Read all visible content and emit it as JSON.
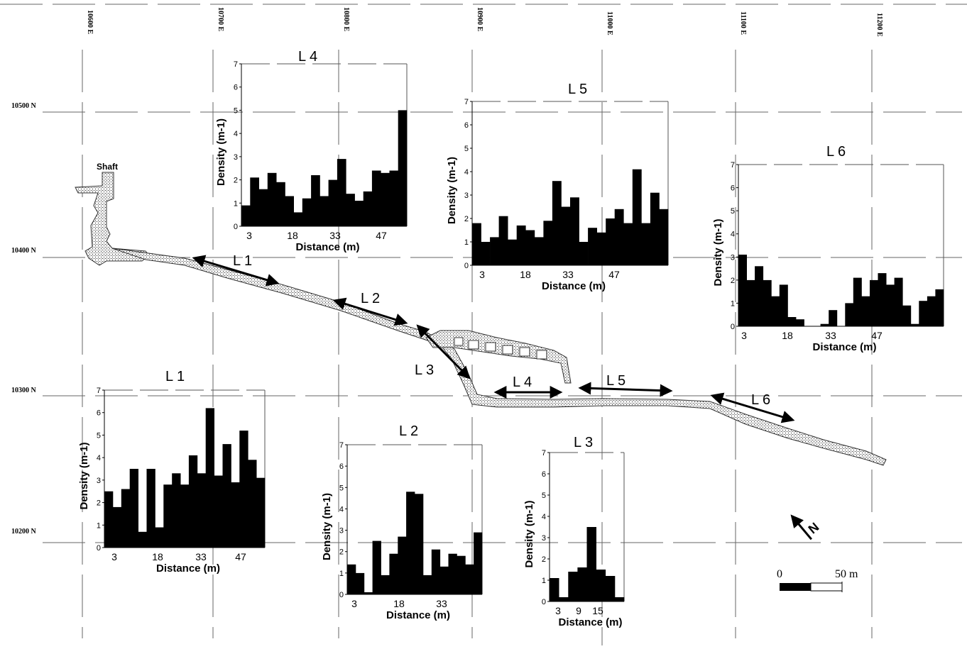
{
  "map": {
    "easting_labels": [
      "10600 E",
      "10700 E",
      "10800 E",
      "10900 E",
      "11000 E",
      "11100 E",
      "11200 E"
    ],
    "northing_labels": [
      "10500 N",
      "10400 N",
      "10300 N",
      "10200 N"
    ],
    "shaft_label": "Shaft",
    "section_labels": [
      "L 1",
      "L 2",
      "L 3",
      "L 4",
      "L 5",
      "L 6"
    ],
    "scale_bar": {
      "start_label": "0",
      "end_label": "50 m"
    },
    "north_arrow": "N"
  },
  "chart_data": [
    {
      "type": "bar",
      "title": "L 1",
      "xlabel": "Distance (m)",
      "ylabel": "Density (m-1)",
      "x_tick_labels": [
        "3",
        "18",
        "33",
        "47"
      ],
      "y_ticks": [
        0,
        1,
        2,
        3,
        4,
        5,
        6,
        7
      ],
      "ylim": [
        0,
        7
      ],
      "values": [
        2.5,
        1.8,
        2.6,
        3.5,
        0.7,
        3.5,
        0.9,
        2.8,
        3.3,
        2.8,
        4.1,
        3.3,
        6.2,
        3.2,
        4.6,
        2.9,
        5.2,
        3.9,
        3.1
      ]
    },
    {
      "type": "bar",
      "title": "L 2",
      "xlabel": "Distance (m)",
      "ylabel": "Density (m-1)",
      "x_tick_labels": [
        "3",
        "18",
        "33"
      ],
      "y_ticks": [
        0,
        1,
        2,
        3,
        4,
        5,
        6,
        7
      ],
      "ylim": [
        0,
        7
      ],
      "values": [
        1.4,
        1.0,
        0.1,
        2.5,
        0.9,
        1.9,
        2.7,
        4.8,
        4.7,
        0.9,
        2.1,
        1.3,
        1.9,
        1.8,
        1.4,
        2.9
      ]
    },
    {
      "type": "bar",
      "title": "L 3",
      "xlabel": "Distance (m)",
      "ylabel": "Density (m-1)",
      "x_tick_labels": [
        "3",
        "9",
        "15"
      ],
      "y_ticks": [
        0,
        1,
        2,
        3,
        4,
        5,
        6,
        7
      ],
      "ylim": [
        0,
        7
      ],
      "values": [
        1.1,
        0.2,
        1.4,
        1.6,
        3.5,
        1.5,
        1.2,
        0.2
      ]
    },
    {
      "type": "bar",
      "title": "L 4",
      "xlabel": "Distance (m)",
      "ylabel": "Density (m-1)",
      "x_tick_labels": [
        "3",
        "18",
        "33",
        "47"
      ],
      "y_ticks": [
        0,
        1,
        2,
        3,
        4,
        5,
        6,
        7
      ],
      "ylim": [
        0,
        7
      ],
      "values": [
        0.9,
        2.1,
        1.6,
        2.3,
        1.9,
        1.3,
        0.6,
        1.2,
        2.2,
        1.3,
        2.0,
        2.9,
        1.4,
        1.1,
        1.5,
        2.4,
        2.3,
        2.4,
        5.0
      ]
    },
    {
      "type": "bar",
      "title": "L 5",
      "xlabel": "Distance (m)",
      "ylabel": "Density (m-1)",
      "x_tick_labels": [
        "3",
        "18",
        "33",
        "47"
      ],
      "y_ticks": [
        0,
        1,
        2,
        3,
        4,
        5,
        6,
        7
      ],
      "ylim": [
        0,
        7
      ],
      "values": [
        1.8,
        1.0,
        1.2,
        2.1,
        1.1,
        1.7,
        1.5,
        1.2,
        1.9,
        3.6,
        2.5,
        2.9,
        1.0,
        1.6,
        1.4,
        2.0,
        2.4,
        1.8,
        4.1,
        1.8,
        3.1,
        2.4
      ]
    },
    {
      "type": "bar",
      "title": "L 6",
      "xlabel": "Distance (m)",
      "ylabel": "Density (m-1)",
      "x_tick_labels": [
        "3",
        "18",
        "33",
        "47"
      ],
      "y_ticks": [
        0,
        1,
        2,
        3,
        4,
        5,
        6,
        7
      ],
      "ylim": [
        0,
        7
      ],
      "values": [
        3.1,
        2.0,
        2.6,
        2.0,
        1.3,
        1.8,
        0.4,
        0.3,
        0,
        0,
        0.1,
        0.7,
        0,
        1.0,
        2.1,
        1.3,
        2.0,
        2.3,
        1.8,
        2.1,
        0.9,
        0.1,
        1.1,
        1.3,
        1.6
      ]
    }
  ]
}
